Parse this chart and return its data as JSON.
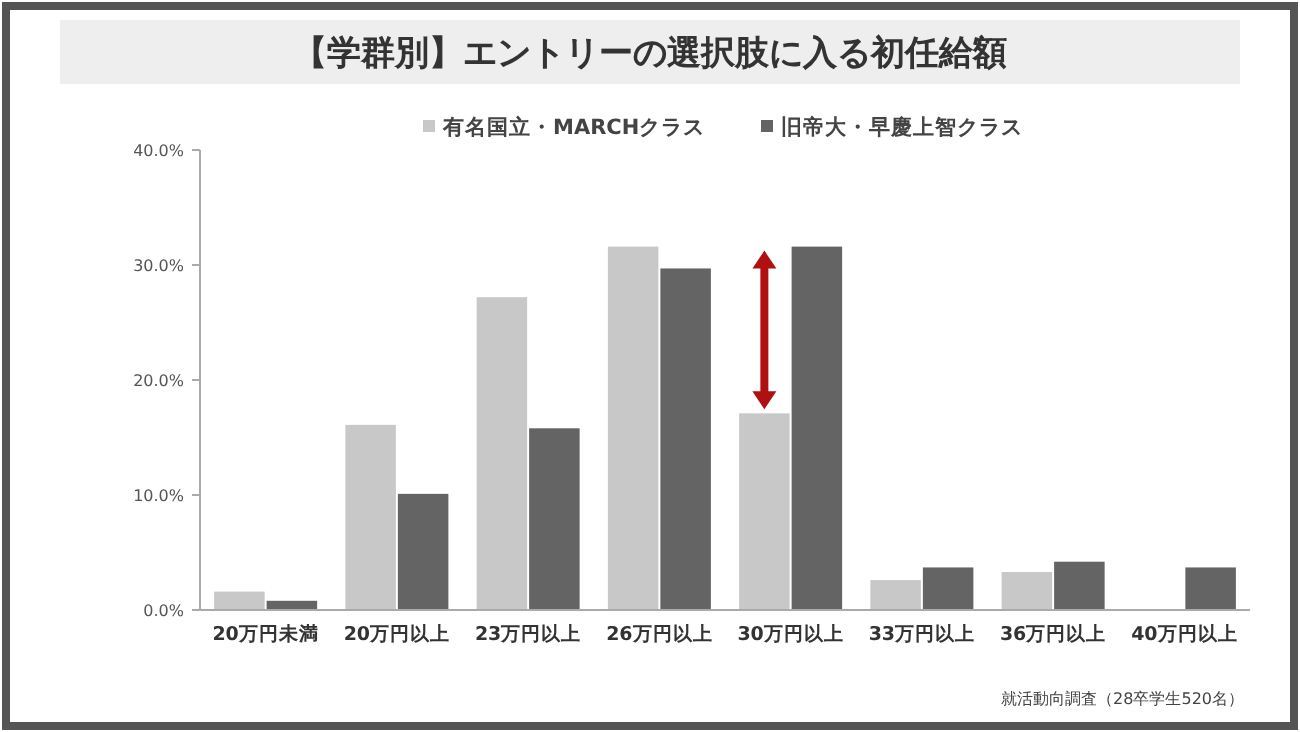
{
  "chart_data": {
    "type": "bar",
    "title": "【学群別】エントリーの選択肢に入る初任給額",
    "categories": [
      "20万円未満",
      "20万円以上",
      "23万円以上",
      "26万円以上",
      "30万円以上",
      "33万円以上",
      "36万円以上",
      "40万円以上"
    ],
    "series": [
      {
        "name": "有名国立・MARCHクラス",
        "color": "#c8c8c8",
        "values": [
          1.6,
          16.1,
          27.2,
          31.6,
          17.1,
          2.6,
          3.3,
          0
        ]
      },
      {
        "name": "旧帝大・早慶上智クラス",
        "color": "#646464",
        "values": [
          0.8,
          10.1,
          15.8,
          29.7,
          31.6,
          3.7,
          4.2,
          3.7
        ]
      }
    ],
    "ylim": [
      0,
      40
    ],
    "yticks": [
      {
        "value": 0,
        "label": "0.0%"
      },
      {
        "value": 10,
        "label": "10.0%"
      },
      {
        "value": 20,
        "label": "20.0%"
      },
      {
        "value": 30,
        "label": "30.0%"
      },
      {
        "value": 40,
        "label": "40.0%"
      }
    ],
    "legend": "top",
    "annotations": [
      "就活動向調査（28卒学生520名）"
    ]
  }
}
